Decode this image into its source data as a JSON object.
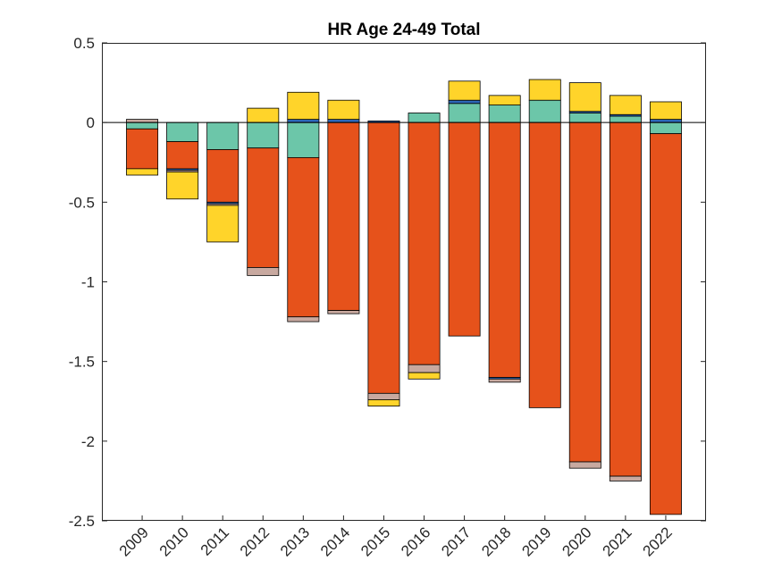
{
  "chart_data": {
    "type": "bar",
    "stacked": true,
    "title": "HR  Age 24-49  Total",
    "xlabel": "",
    "ylabel": "",
    "categories": [
      "2009",
      "2010",
      "2011",
      "2012",
      "2013",
      "2014",
      "2015",
      "2016",
      "2017",
      "2018",
      "2019",
      "2020",
      "2021",
      "2022"
    ],
    "ylim": [
      -2.5,
      0.5
    ],
    "yticks": [
      0.5,
      0,
      -0.5,
      -1,
      -1.5,
      -2,
      -2.5
    ],
    "ytick_labels": [
      "0.5",
      "0",
      "-0.5",
      "-1",
      "-1.5",
      "-2",
      "-2.5"
    ],
    "grid": false,
    "zero_line": true,
    "series": [
      {
        "color": "#6CC6A9",
        "values": [
          -0.04,
          -0.12,
          -0.17,
          -0.16,
          -0.22,
          0,
          0,
          0.06,
          0.12,
          0.11,
          0.14,
          0.06,
          0.04,
          -0.07
        ]
      },
      {
        "color": "#E6521B",
        "values": [
          -0.25,
          -0.17,
          -0.33,
          -0.75,
          -1.0,
          -1.18,
          -1.7,
          -1.52,
          -1.34,
          -1.6,
          -1.79,
          -2.13,
          -2.22,
          -2.39
        ]
      },
      {
        "color": "#2D67B8",
        "values": [
          0,
          -0.01,
          -0.01,
          0,
          0.02,
          0.02,
          0.01,
          0,
          0.02,
          -0.01,
          0,
          0.01,
          0.01,
          0.02
        ]
      },
      {
        "color": "#C8A9A0",
        "values": [
          0.02,
          -0.01,
          -0.01,
          -0.05,
          -0.03,
          -0.02,
          -0.04,
          -0.05,
          0,
          -0.02,
          0,
          -0.04,
          -0.03,
          0
        ]
      },
      {
        "color": "#FFD42A",
        "values": [
          -0.04,
          -0.17,
          -0.23,
          0.09,
          0.17,
          0.12,
          -0.04,
          -0.04,
          0.12,
          0.06,
          0.13,
          0.18,
          0.12,
          0.11
        ]
      }
    ]
  }
}
